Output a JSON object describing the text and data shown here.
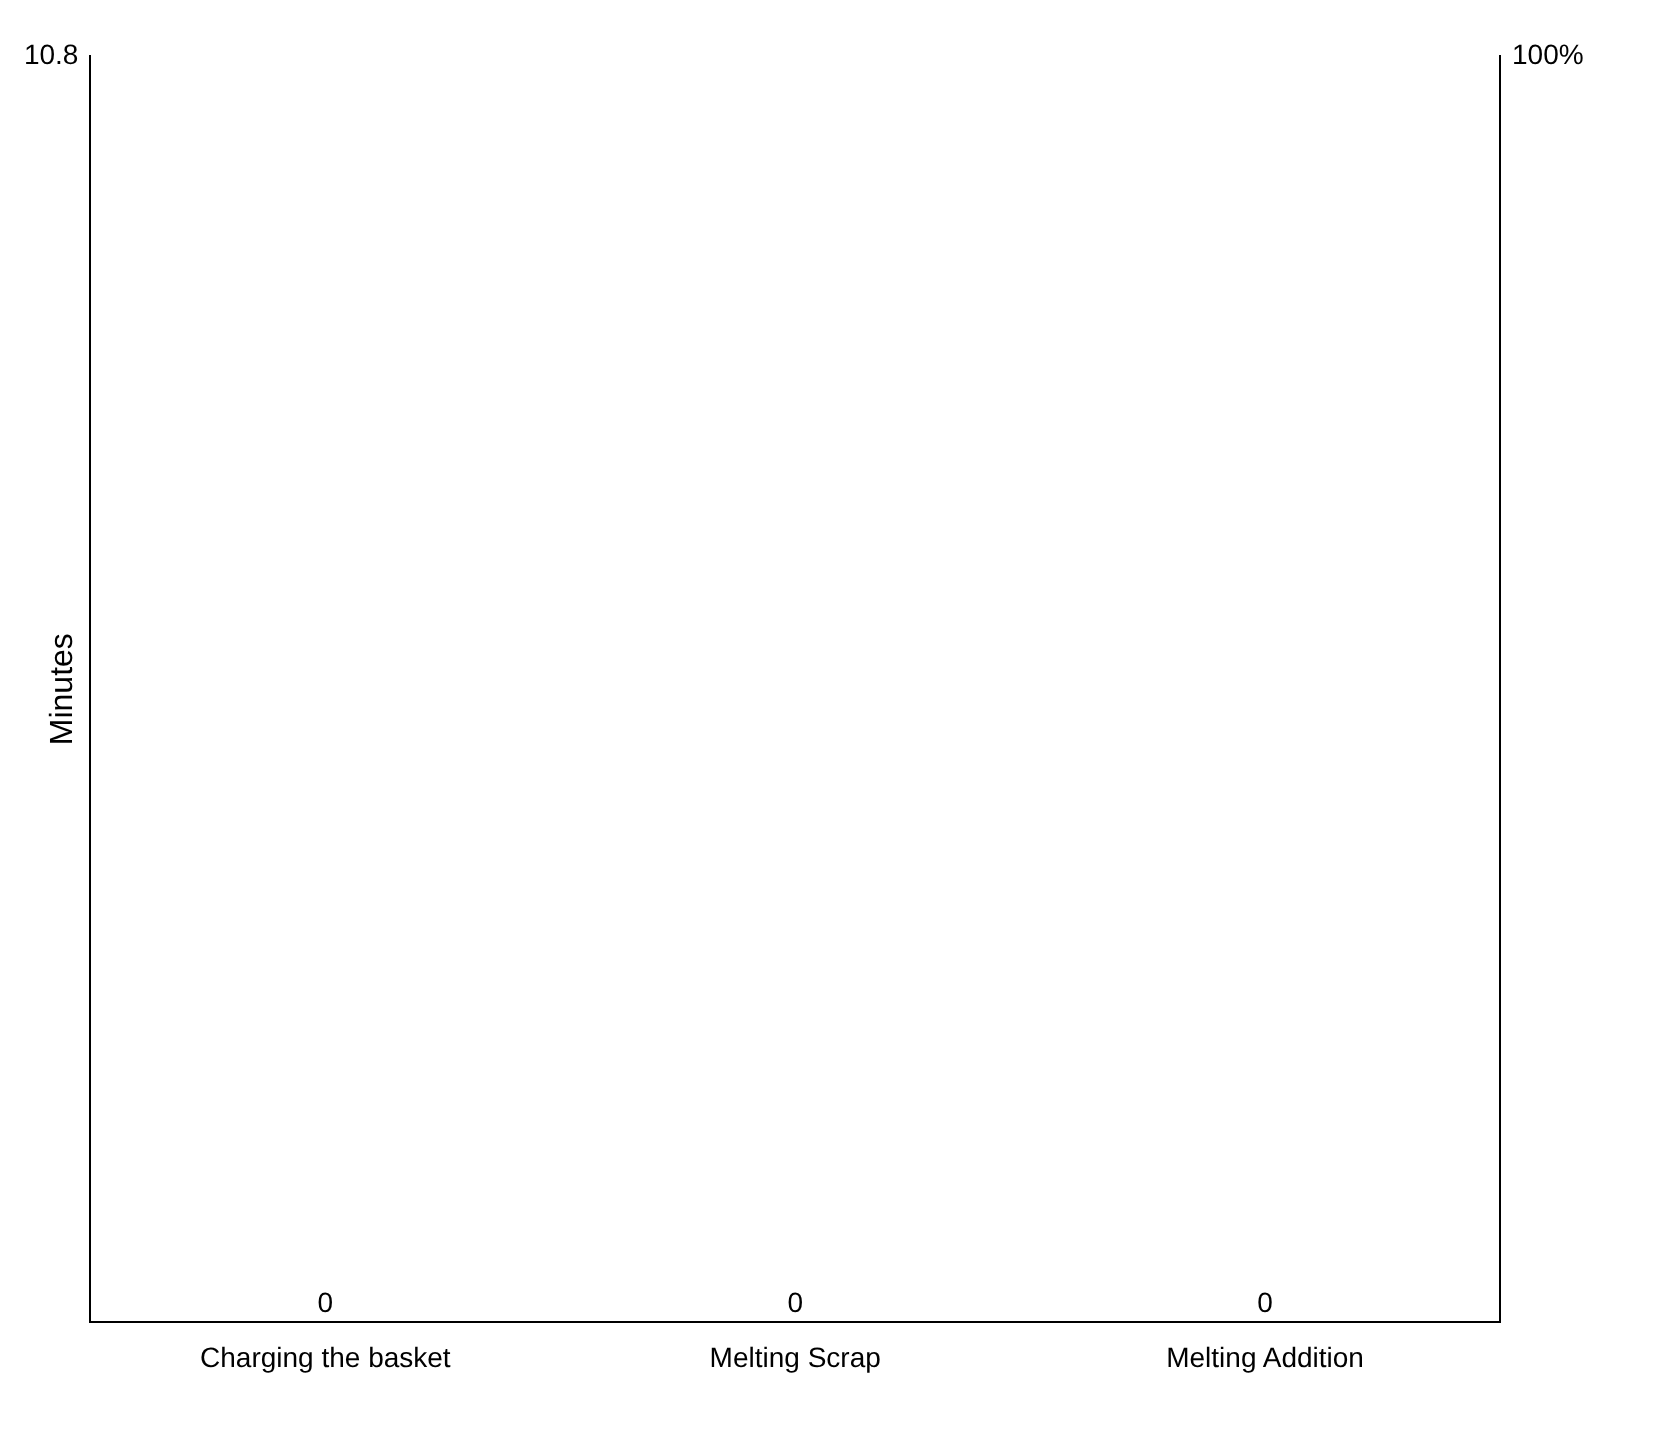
{
  "chart_data": {
    "type": "other",
    "ylabel": "Minutes",
    "categories": [
      "Charging the basket",
      "Melting Scrap",
      "Melting Addition"
    ],
    "values": [
      0,
      0,
      0
    ],
    "data_labels": true,
    "annotations": [
      "10.8",
      "100%"
    ]
  }
}
